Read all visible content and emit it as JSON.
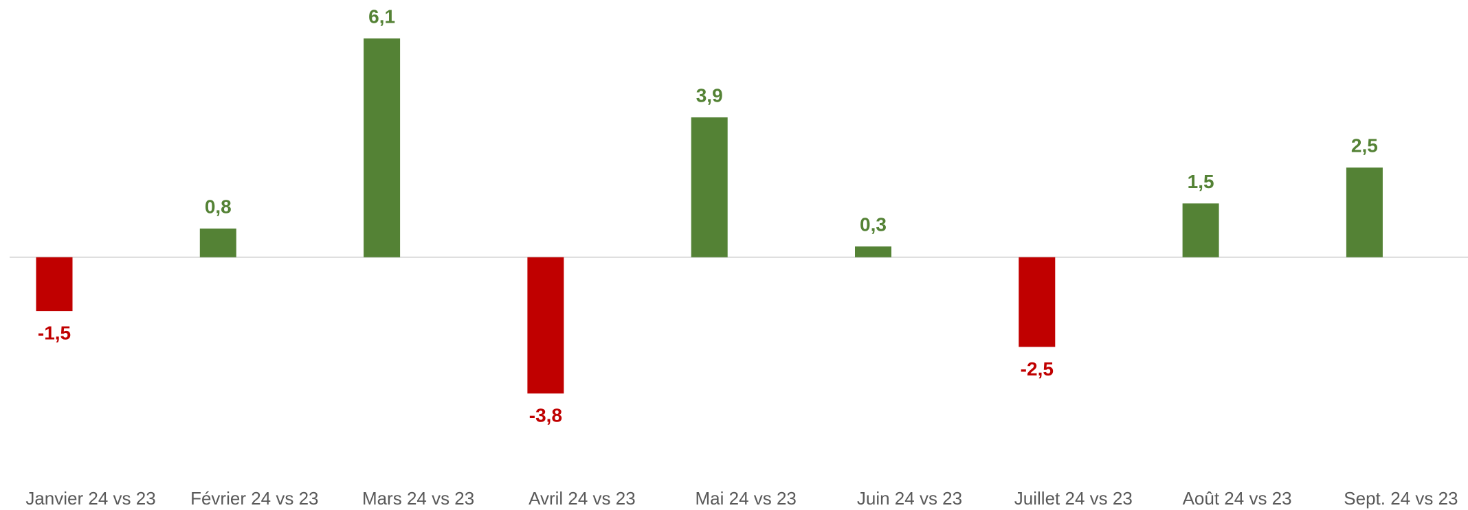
{
  "chart_data": {
    "type": "bar",
    "categories": [
      "Janvier 24 vs 23",
      "Février 24 vs 23",
      "Mars 24 vs 23",
      "Avril 24 vs 23",
      "Mai 24 vs 23",
      "Juin 24 vs 23",
      "Juillet 24 vs 23",
      "Août 24 vs 23",
      "Sept. 24 vs 23"
    ],
    "values": [
      -1.5,
      0.8,
      6.1,
      -3.8,
      3.9,
      0.3,
      -2.5,
      1.5,
      2.5
    ],
    "value_labels": [
      "-1,5",
      "0,8",
      "6,1",
      "-3,8",
      "3,9",
      "0,3",
      "-2,5",
      "1,5",
      "2,5"
    ],
    "colors": [
      "#c00000",
      "#548235",
      "#548235",
      "#c00000",
      "#548235",
      "#548235",
      "#c00000",
      "#548235",
      "#548235"
    ],
    "ylim": [
      -5,
      7
    ],
    "grid": false
  }
}
